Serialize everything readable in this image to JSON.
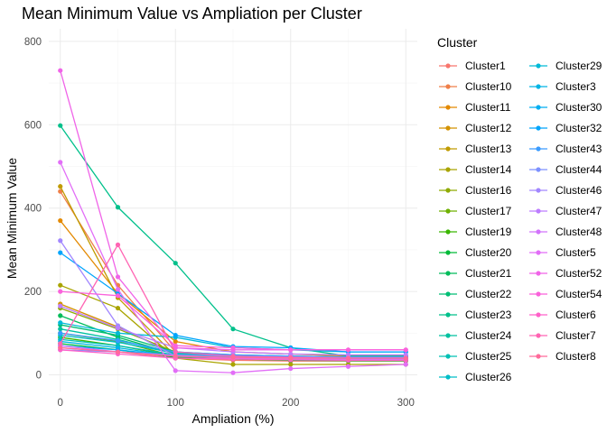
{
  "chart_data": {
    "type": "line",
    "title": "Mean Minimum Value vs Ampliation per Cluster",
    "xlabel": "Ampliation (%)",
    "ylabel": "Mean Minimum Value",
    "xlim": [
      -10,
      310
    ],
    "ylim": [
      -40,
      830
    ],
    "x_ticks": [
      0,
      100,
      200,
      300
    ],
    "y_ticks": [
      0,
      200,
      400,
      600,
      800
    ],
    "grid": true,
    "legend": {
      "title": "Cluster",
      "placement": "right",
      "columns": 2
    },
    "x": [
      0,
      50,
      100,
      150,
      200,
      250,
      300
    ],
    "series": [
      {
        "name": "Cluster1",
        "color": "#F8766D",
        "values": [
          65,
          55,
          40,
          35,
          33,
          33,
          33
        ]
      },
      {
        "name": "Cluster10",
        "color": "#EF7F49",
        "values": [
          440,
          215,
          55,
          45,
          42,
          40,
          40
        ]
      },
      {
        "name": "Cluster11",
        "color": "#E38900",
        "values": [
          370,
          195,
          80,
          55,
          50,
          45,
          45
        ]
      },
      {
        "name": "Cluster12",
        "color": "#D39200",
        "values": [
          170,
          115,
          50,
          40,
          38,
          37,
          36
        ]
      },
      {
        "name": "Cluster13",
        "color": "#C09B00",
        "values": [
          452,
          185,
          45,
          38,
          35,
          35,
          35
        ]
      },
      {
        "name": "Cluster14",
        "color": "#A9A400",
        "values": [
          215,
          160,
          40,
          25,
          25,
          25,
          25
        ]
      },
      {
        "name": "Cluster16",
        "color": "#8FAA00",
        "values": [
          160,
          110,
          55,
          45,
          40,
          40,
          40
        ]
      },
      {
        "name": "Cluster17",
        "color": "#6FB100",
        "values": [
          100,
          80,
          45,
          40,
          38,
          36,
          35
        ]
      },
      {
        "name": "Cluster19",
        "color": "#3BB600",
        "values": [
          90,
          70,
          45,
          42,
          40,
          40,
          40
        ]
      },
      {
        "name": "Cluster20",
        "color": "#00BA38",
        "values": [
          75,
          60,
          42,
          38,
          35,
          34,
          34
        ]
      },
      {
        "name": "Cluster21",
        "color": "#00BC5A",
        "values": [
          142,
          90,
          50,
          45,
          42,
          40,
          40
        ]
      },
      {
        "name": "Cluster22",
        "color": "#00BE74",
        "values": [
          120,
          95,
          55,
          48,
          45,
          43,
          42
        ]
      },
      {
        "name": "Cluster23",
        "color": "#00C08B",
        "values": [
          598,
          402,
          268,
          110,
          65,
          45,
          45
        ]
      },
      {
        "name": "Cluster24",
        "color": "#00C1A0",
        "values": [
          110,
          85,
          50,
          45,
          42,
          40,
          40
        ]
      },
      {
        "name": "Cluster25",
        "color": "#00C0B4",
        "values": [
          85,
          70,
          48,
          44,
          42,
          40,
          40
        ]
      },
      {
        "name": "Cluster26",
        "color": "#00BEC7",
        "values": [
          95,
          78,
          52,
          46,
          44,
          42,
          42
        ]
      },
      {
        "name": "Cluster29",
        "color": "#00BAD7",
        "values": [
          125,
          100,
          90,
          65,
          60,
          55,
          55
        ]
      },
      {
        "name": "Cluster3",
        "color": "#00B5E5",
        "values": [
          80,
          65,
          45,
          42,
          40,
          40,
          40
        ]
      },
      {
        "name": "Cluster30",
        "color": "#00AEF2",
        "values": [
          70,
          60,
          45,
          42,
          40,
          40,
          40
        ]
      },
      {
        "name": "Cluster32",
        "color": "#00A5FC",
        "values": [
          293,
          195,
          95,
          68,
          65,
          55,
          55
        ]
      },
      {
        "name": "Cluster43",
        "color": "#3A9BFF",
        "values": [
          100,
          82,
          55,
          48,
          45,
          43,
          43
        ]
      },
      {
        "name": "Cluster44",
        "color": "#7D91FF",
        "values": [
          60,
          55,
          48,
          45,
          43,
          42,
          42
        ]
      },
      {
        "name": "Cluster46",
        "color": "#A287FF",
        "values": [
          322,
          118,
          45,
          40,
          38,
          37,
          37
        ]
      },
      {
        "name": "Cluster47",
        "color": "#BD7DFF",
        "values": [
          165,
          112,
          65,
          55,
          50,
          48,
          48
        ]
      },
      {
        "name": "Cluster48",
        "color": "#D274FB",
        "values": [
          70,
          55,
          45,
          40,
          38,
          37,
          37
        ]
      },
      {
        "name": "Cluster5",
        "color": "#E26EF7",
        "values": [
          510,
          205,
          10,
          5,
          15,
          20,
          25
        ]
      },
      {
        "name": "Cluster52",
        "color": "#F064E8",
        "values": [
          730,
          235,
          65,
          60,
          60,
          60,
          60
        ]
      },
      {
        "name": "Cluster54",
        "color": "#FA62DB",
        "values": [
          200,
          190,
          70,
          65,
          60,
          60,
          60
        ]
      },
      {
        "name": "Cluster6",
        "color": "#FF61C9",
        "values": [
          60,
          50,
          40,
          38,
          36,
          35,
          35
        ]
      },
      {
        "name": "Cluster7",
        "color": "#FF64B3",
        "values": [
          75,
          312,
          55,
          45,
          42,
          40,
          40
        ]
      },
      {
        "name": "Cluster8",
        "color": "#FF6A9A",
        "values": [
          65,
          55,
          45,
          42,
          40,
          40,
          40
        ]
      }
    ]
  }
}
